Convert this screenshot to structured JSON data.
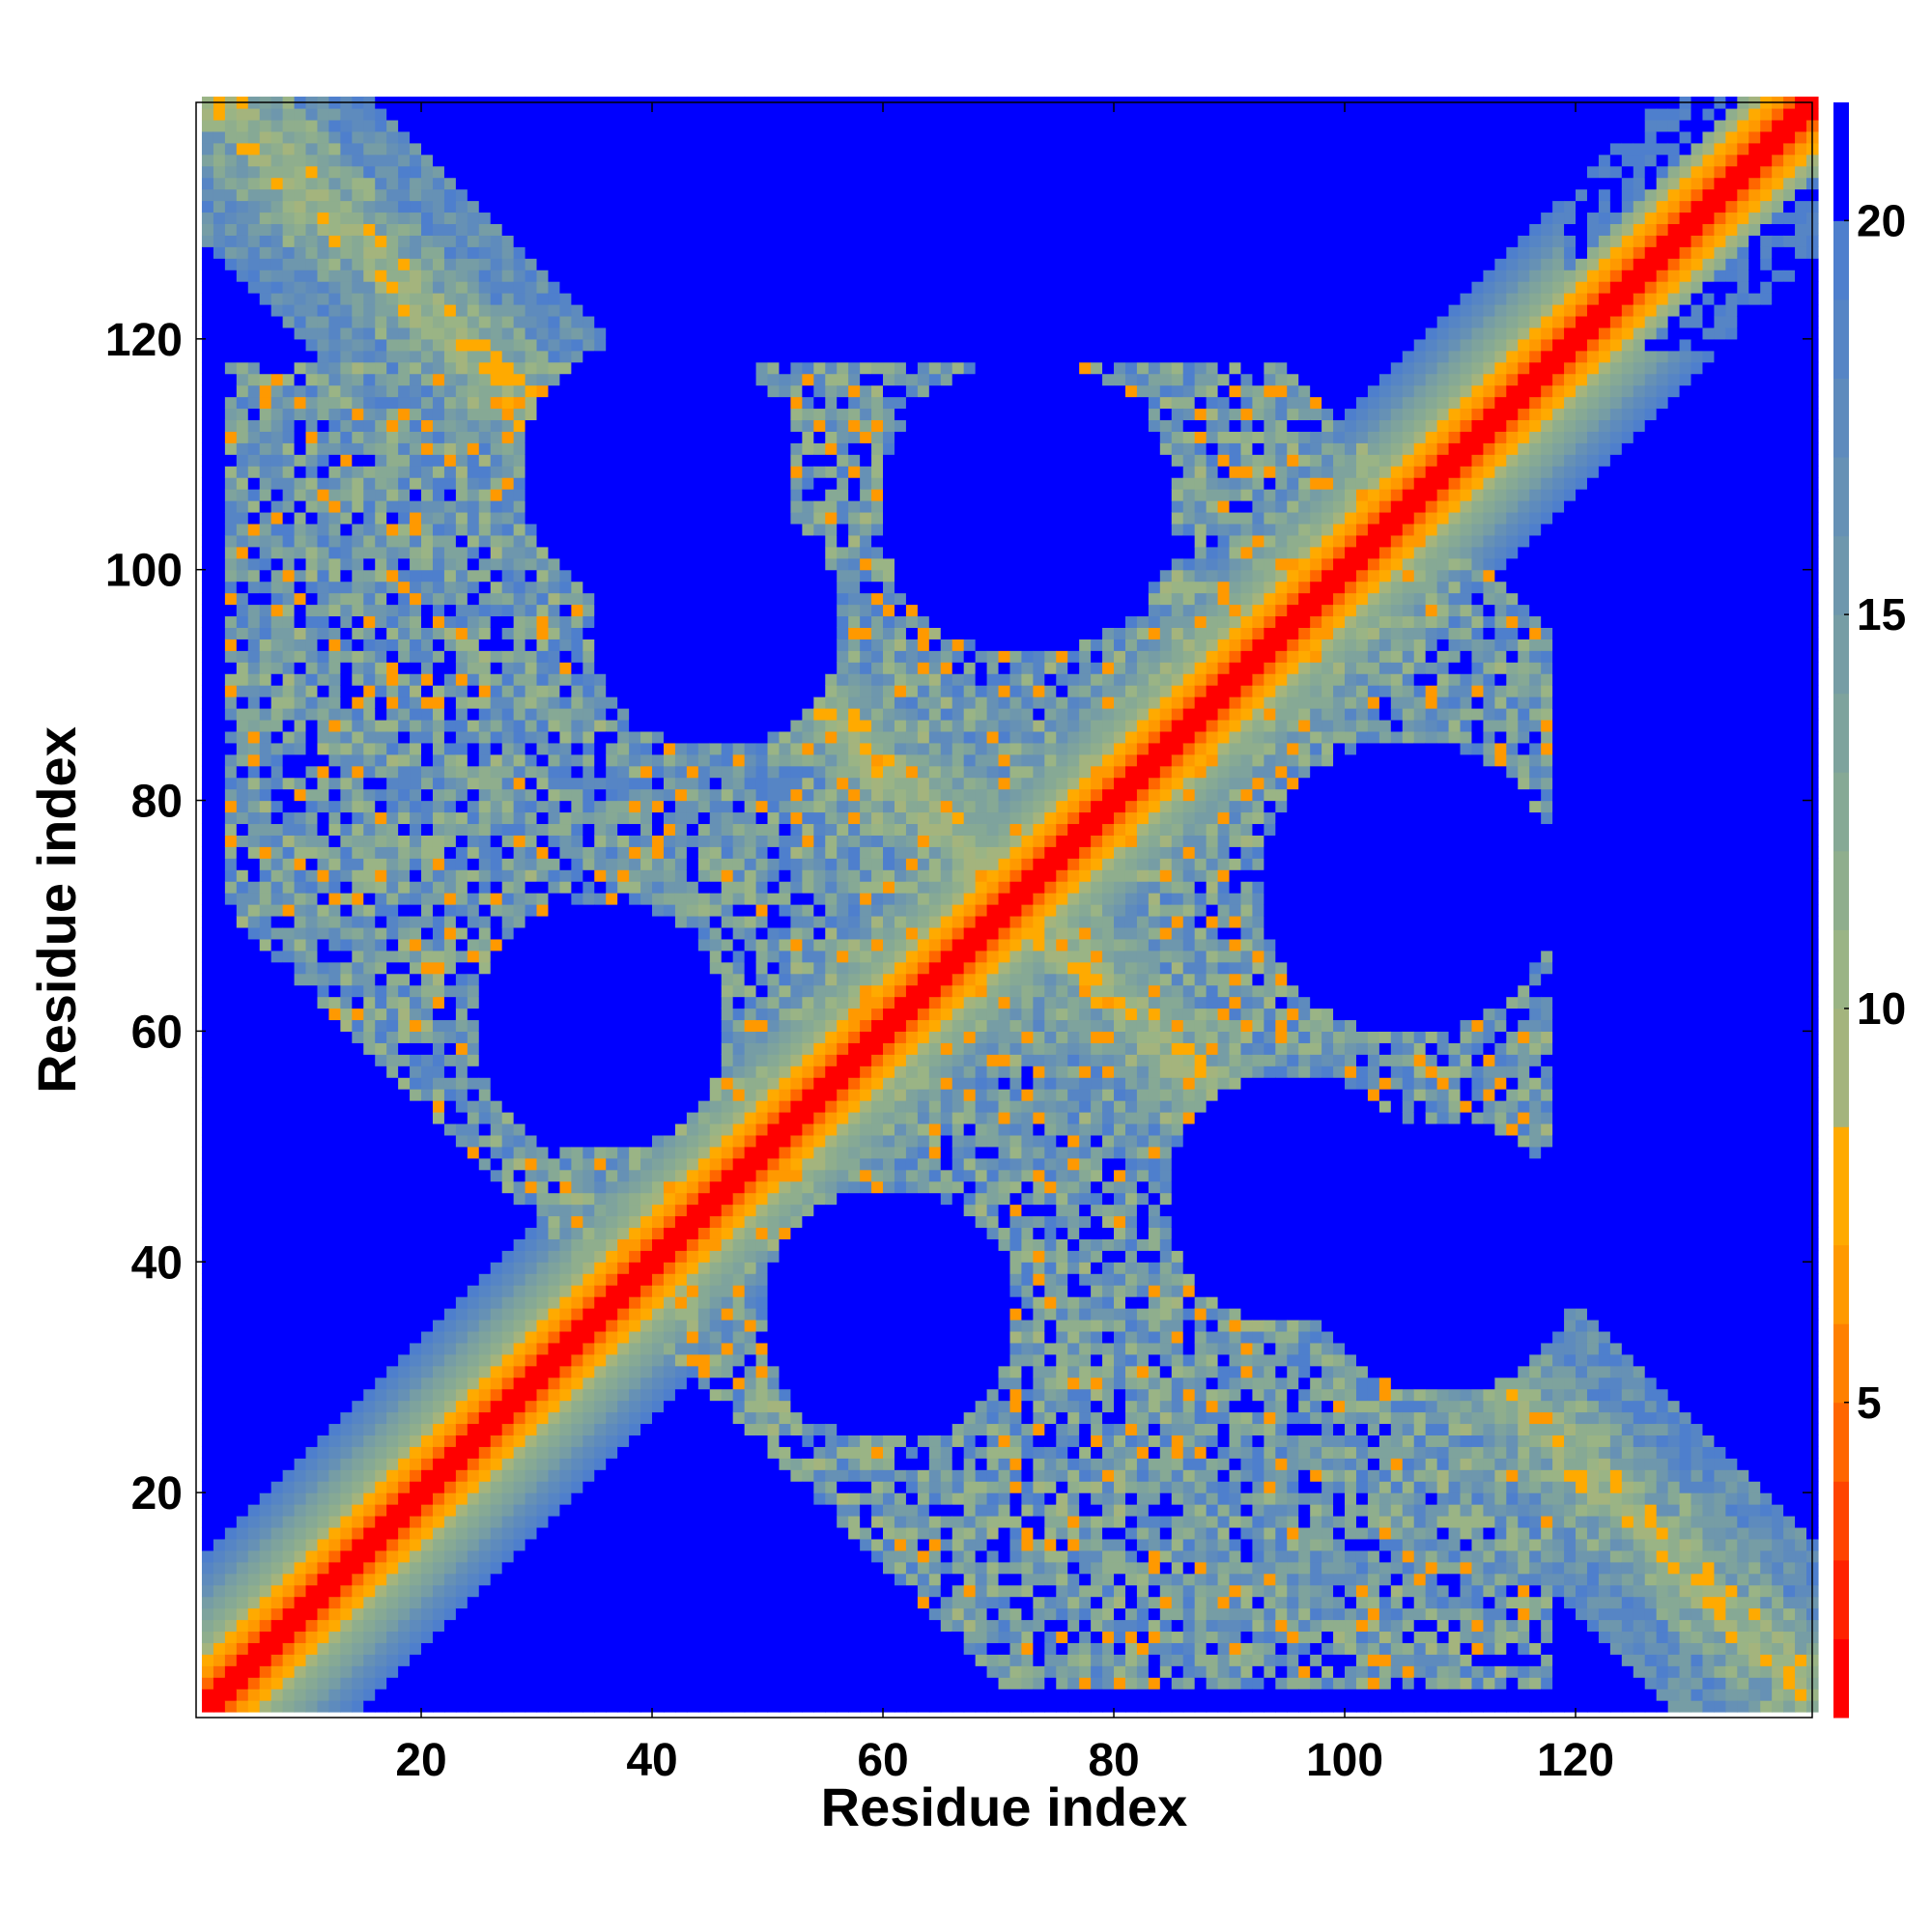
{
  "chart_data": {
    "type": "heatmap",
    "title": "",
    "xlabel": "Residue index",
    "ylabel": "Residue index",
    "x_range": [
      1,
      140
    ],
    "y_range": [
      1,
      140
    ],
    "x_ticks": [
      20,
      40,
      60,
      80,
      100,
      120
    ],
    "y_ticks": [
      20,
      40,
      60,
      80,
      100,
      120
    ],
    "colorbar": {
      "min": 1,
      "max": 21.5,
      "ticks": [
        5,
        10,
        15,
        20
      ],
      "levels": [
        {
          "upto": 2,
          "color": "#ff0000"
        },
        {
          "upto": 3,
          "color": "#ff2200"
        },
        {
          "upto": 4,
          "color": "#ff4400"
        },
        {
          "upto": 5,
          "color": "#ff6600"
        },
        {
          "upto": 6,
          "color": "#ff8000"
        },
        {
          "upto": 7,
          "color": "#ff9900"
        },
        {
          "upto": 8.5,
          "color": "#ffaa00"
        },
        {
          "upto": 10,
          "color": "#a4b47d"
        },
        {
          "upto": 11,
          "color": "#9ab485"
        },
        {
          "upto": 12,
          "color": "#8fae8d"
        },
        {
          "upto": 13,
          "color": "#86a995"
        },
        {
          "upto": 14,
          "color": "#7ea39d"
        },
        {
          "upto": 15,
          "color": "#769da5"
        },
        {
          "upto": 16,
          "color": "#6e97ad"
        },
        {
          "upto": 17,
          "color": "#6691b5"
        },
        {
          "upto": 18,
          "color": "#5e8bbd"
        },
        {
          "upto": 19,
          "color": "#5685c5"
        },
        {
          "upto": 20,
          "color": "#4e7fcd"
        },
        {
          "upto": 21.5,
          "color": "#0000ff"
        }
      ]
    },
    "pattern": "symmetric residue distance map: strong red diagonal, anti-diagonal contact band with blue voids",
    "colors": {
      "far": "#0000ff",
      "near": "#ff0000"
    }
  }
}
